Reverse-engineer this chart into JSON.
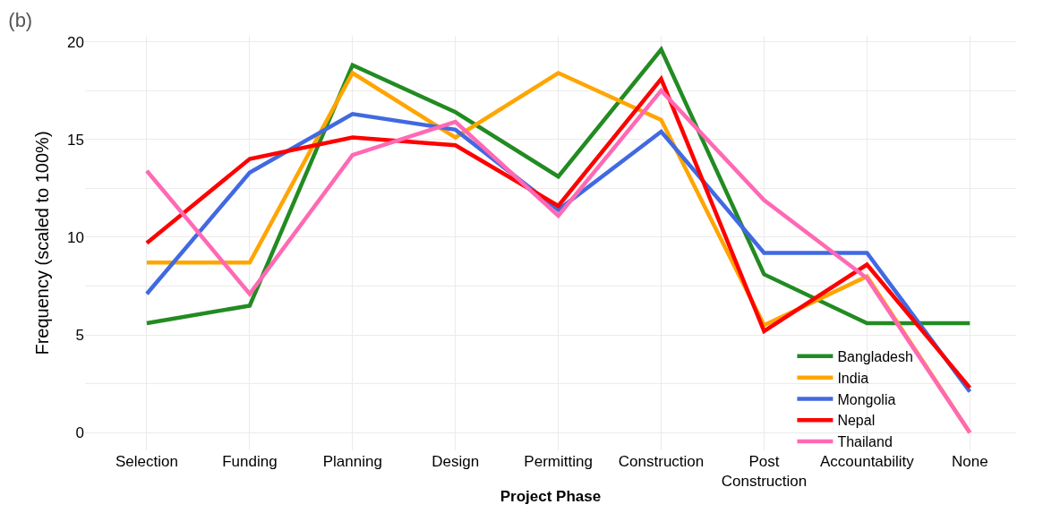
{
  "chart_data": {
    "type": "line",
    "title": "(b)",
    "xlabel": "Project Phase",
    "ylabel": "Frequency (scaled to 100%)",
    "categories": [
      "Selection",
      "Funding",
      "Planning",
      "Design",
      "Permitting",
      "Construction",
      "Post Construction",
      "Accountability",
      "None"
    ],
    "series": [
      {
        "name": "Bangladesh",
        "color": "#228b22",
        "values": [
          5.6,
          6.5,
          18.8,
          16.4,
          13.1,
          19.6,
          8.1,
          5.6,
          5.6
        ]
      },
      {
        "name": "India",
        "color": "#ffa500",
        "values": [
          8.7,
          8.7,
          18.4,
          15.1,
          18.4,
          16.0,
          5.5,
          8.0,
          0
        ]
      },
      {
        "name": "Mongolia",
        "color": "#4169e1",
        "values": [
          7.1,
          13.3,
          16.3,
          15.5,
          11.4,
          15.4,
          9.2,
          9.2,
          2.1
        ]
      },
      {
        "name": "Nepal",
        "color": "#ff0000",
        "values": [
          9.7,
          14.0,
          15.1,
          14.7,
          11.6,
          18.1,
          5.2,
          8.6,
          2.3
        ]
      },
      {
        "name": "Thailand",
        "color": "#ff69b4",
        "values": [
          13.4,
          7.1,
          14.2,
          15.9,
          11.1,
          17.5,
          11.9,
          7.9,
          0
        ]
      }
    ],
    "ylim": [
      -0.9,
      20.3
    ],
    "yticks": [
      0,
      {
        "value": 2.5,
        "label": null
      },
      5,
      {
        "value": 7.5,
        "label": null
      },
      10,
      {
        "value": 12.5,
        "label": null
      },
      15,
      {
        "value": 17.5,
        "label": null
      },
      20
    ],
    "grid": true,
    "legend": "bottom right",
    "marker": "none",
    "line_style": "solid"
  }
}
